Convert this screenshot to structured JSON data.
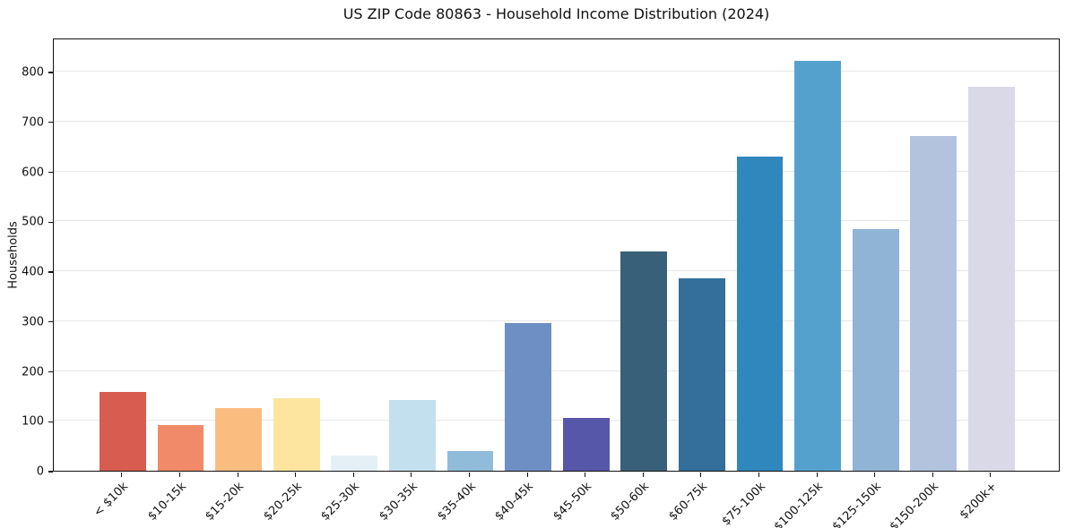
{
  "chart_data": {
    "type": "bar",
    "title": "US ZIP Code 80863 - Household Income Distribution (2024)",
    "xlabel": "",
    "ylabel": "Households",
    "categories": [
      "< $10k",
      "$10-15k",
      "$15-20k",
      "$20-25k",
      "$25-30k",
      "$30-35k",
      "$35-40k",
      "$40-45k",
      "$45-50k",
      "$50-60k",
      "$60-75k",
      "$75-100k",
      "$100-125k",
      "$125-150k",
      "$150-200k",
      "$200k+"
    ],
    "values": [
      157,
      92,
      126,
      146,
      31,
      142,
      40,
      296,
      106,
      440,
      385,
      630,
      822,
      484,
      671,
      769
    ],
    "bar_colors": [
      "#d85c50",
      "#f08a68",
      "#fbbc80",
      "#fde5a0",
      "#e4f0f6",
      "#c3e0ee",
      "#90bcd9",
      "#6d8fc4",
      "#5757a9",
      "#386078",
      "#336f9a",
      "#2f87bd",
      "#55a1cd",
      "#8fb4d6",
      "#b3c3de",
      "#d9d9e8"
    ],
    "yticks": [
      0,
      100,
      200,
      300,
      400,
      500,
      600,
      700,
      800
    ],
    "ylim": [
      0,
      868
    ],
    "grid": "horizontal",
    "legend": "none",
    "background_color": "#ffffff",
    "grid_color": "#e7e7e7",
    "text_color": "#111111",
    "spine_color": "#111111"
  }
}
